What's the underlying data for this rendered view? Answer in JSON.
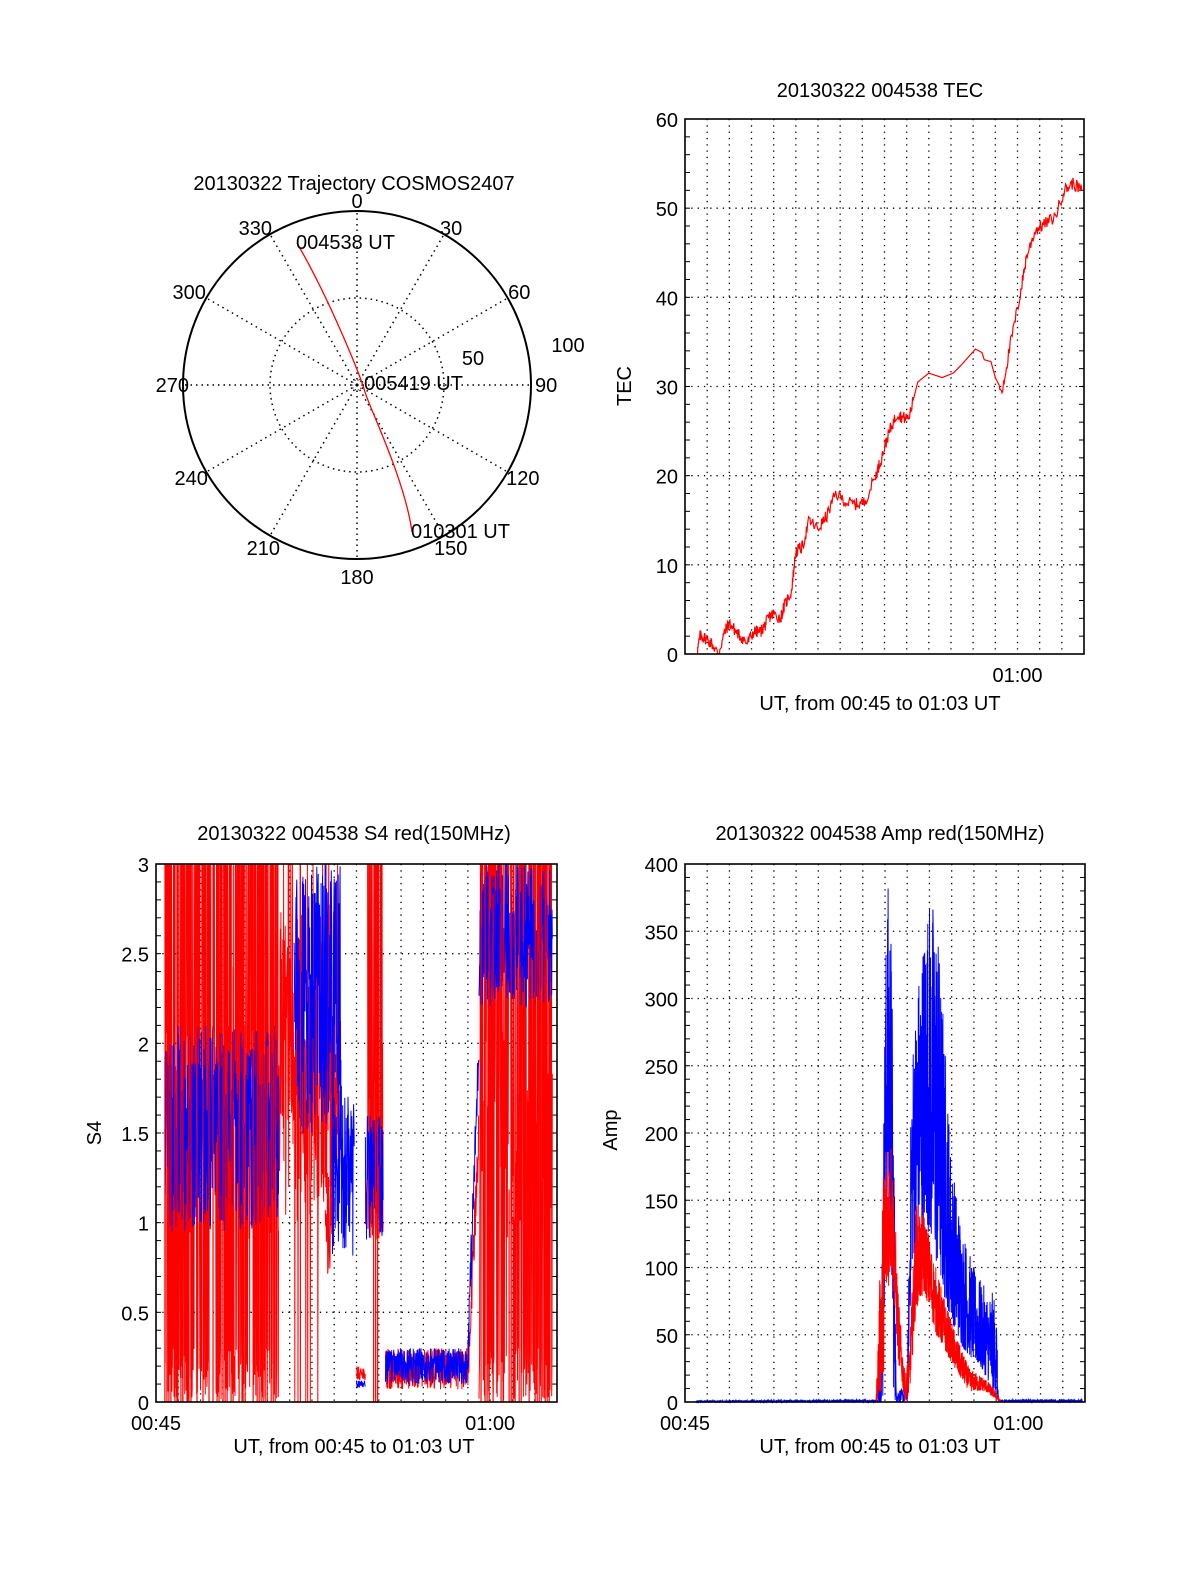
{
  "chart_data": [
    {
      "id": "trajectory",
      "type": "polar",
      "title": "20130322 Trajectory COSMOS2407",
      "azimuth_labels": [
        "0",
        "30",
        "60",
        "90",
        "120",
        "150",
        "180",
        "210",
        "240",
        "270",
        "300",
        "330"
      ],
      "radial_labels": [
        "50",
        "100"
      ],
      "radial_max": 100,
      "grid": "dotted",
      "series": [
        {
          "name": "trajectory",
          "color": "#ff0000",
          "points_az_el": [
            {
              "az": 337.5,
              "el": 5
            },
            {
              "az": 338,
              "el": 20
            },
            {
              "az": 339,
              "el": 40
            },
            {
              "az": 340,
              "el": 60
            },
            {
              "az": 343,
              "el": 80
            },
            {
              "az": 350,
              "el": 92
            },
            {
              "az": 90,
              "el": 97
            },
            {
              "az": 150,
              "el": 92
            },
            {
              "az": 156,
              "el": 80
            },
            {
              "az": 158,
              "el": 60
            },
            {
              "az": 159,
              "el": 40
            },
            {
              "az": 159.5,
              "el": 20
            },
            {
              "az": 159.7,
              "el": 10
            }
          ]
        }
      ],
      "annotations": [
        {
          "text": "004538 UT",
          "at": "start"
        },
        {
          "text": "005419 UT",
          "at": "zenith"
        },
        {
          "text": "010301 UT",
          "at": "end"
        }
      ]
    },
    {
      "id": "tec",
      "type": "line",
      "title": "20130322 004538 TEC",
      "xlabel": "UT, from 00:45 to 01:03 UT",
      "ylabel": "TEC",
      "xlim_minutes_after_0045": [
        0,
        18
      ],
      "ylim": [
        0,
        60
      ],
      "yticks": [
        "0",
        "10",
        "20",
        "30",
        "40",
        "50",
        "60"
      ],
      "ytick_values": [
        0,
        10,
        20,
        30,
        40,
        50,
        60
      ],
      "xticks": [
        {
          "label": "01:00",
          "minute": 15
        }
      ],
      "grid": true,
      "series": [
        {
          "name": "TEC",
          "color": "#ff0000",
          "x_minutes": [
            0.54,
            0.68,
            0.9,
            1.2,
            1.5,
            1.8,
            2.0,
            2.3,
            2.5,
            2.8,
            3.1,
            3.4,
            3.6,
            3.8,
            4.0,
            4.3,
            4.5,
            4.8,
            5.0,
            5.3,
            5.6,
            6.0,
            6.4,
            6.8,
            7.3,
            7.7,
            8.1,
            8.6,
            8.8,
            9.1,
            9.3,
            9.6,
            9.8,
            10.1,
            10.5,
            11.0,
            11.6,
            12.1,
            12.5,
            13.1,
            13.4,
            13.5,
            13.8,
            14.0,
            14.3,
            14.7,
            15.1,
            15.4,
            15.8,
            16.2,
            16.7,
            17.1,
            17.5,
            17.9
          ],
          "values": [
            0,
            2,
            1.8,
            1.2,
            0,
            2.5,
            3.5,
            2.5,
            2.0,
            1.2,
            2.5,
            2.5,
            3.2,
            4.2,
            4.5,
            4.0,
            5.5,
            7.0,
            11.5,
            12.0,
            15.0,
            14.0,
            15.5,
            18.0,
            17.0,
            16.8,
            17.0,
            20.0,
            21.5,
            24.0,
            25.5,
            27.0,
            26.5,
            26.5,
            30.5,
            31.5,
            31.0,
            31.5,
            32.5,
            34.2,
            33.8,
            33.0,
            32.8,
            31.0,
            29.5,
            35.0,
            40.0,
            44.5,
            47.5,
            48.2,
            49.0,
            52.0,
            52.8,
            52.0
          ]
        }
      ]
    },
    {
      "id": "s4",
      "type": "line",
      "title": "20130322 004538 S4 red(150MHz)",
      "xlabel": "UT, from 00:45 to 01:03 UT",
      "ylabel": "S4",
      "xlim_minutes_after_0045": [
        0,
        18
      ],
      "ylim": [
        0,
        3
      ],
      "yticks": [
        "0",
        "0.5",
        "1",
        "1.5",
        "2",
        "2.5",
        "3"
      ],
      "ytick_values": [
        0,
        0.5,
        1,
        1.5,
        2,
        2.5,
        3
      ],
      "xticks": [
        {
          "label": "00:45",
          "minute": 0
        },
        {
          "label": "01:00",
          "minute": 15
        }
      ],
      "grid": true,
      "series": [
        {
          "name": "red (150MHz)",
          "color": "#ff0000",
          "segments": [
            {
              "from": 0.4,
              "to": 5.5,
              "low": 0,
              "high": 3,
              "style": "spikes"
            },
            {
              "from": 5.5,
              "to": 8.3,
              "low": 1.0,
              "high": 2.8,
              "style": "noisy",
              "sparse_spikes": true
            },
            {
              "from": 7.6,
              "to": 8.0,
              "low": 0.7,
              "high": 1.3,
              "style": "noisy"
            },
            {
              "from": 9.0,
              "to": 9.4,
              "low": 0.12,
              "high": 0.2,
              "style": "noisy"
            },
            {
              "from": 9.5,
              "to": 10.2,
              "low": 0.9,
              "high": 3,
              "style": "spikes"
            },
            {
              "from": 10.3,
              "to": 14.0,
              "low": 0.07,
              "high": 0.3,
              "style": "noisy"
            },
            {
              "from": 14.0,
              "to": 14.5,
              "low": 0.2,
              "high": 1.5,
              "style": "rise"
            },
            {
              "from": 14.5,
              "to": 17.8,
              "low": 0,
              "high": 3,
              "style": "spikes"
            }
          ]
        },
        {
          "name": "blue",
          "color": "#0000ff",
          "segments": [
            {
              "from": 0.4,
              "to": 5.5,
              "low": 0.95,
              "high": 2.1,
              "style": "noisy"
            },
            {
              "from": 6.2,
              "to": 8.3,
              "low": 1.5,
              "high": 3,
              "style": "noisy"
            },
            {
              "from": 7.9,
              "to": 8.9,
              "low": 0.8,
              "high": 1.8,
              "style": "noisy"
            },
            {
              "from": 9.0,
              "to": 9.4,
              "low": 0.08,
              "high": 0.12,
              "style": "noisy"
            },
            {
              "from": 9.4,
              "to": 10.2,
              "low": 0.9,
              "high": 1.6,
              "style": "noisy"
            },
            {
              "from": 10.3,
              "to": 14.0,
              "low": 0.1,
              "high": 0.3,
              "style": "noisy"
            },
            {
              "from": 14.0,
              "to": 14.5,
              "low": 0.3,
              "high": 2.0,
              "style": "rise"
            },
            {
              "from": 14.5,
              "to": 17.8,
              "low": 2.2,
              "high": 3,
              "style": "noisy"
            }
          ]
        }
      ]
    },
    {
      "id": "amp",
      "type": "line",
      "title": "20130322 004538 Amp red(150MHz)",
      "xlabel": "UT, from 00:45 to 01:03 UT",
      "ylabel": "Amp",
      "xlim_minutes_after_0045": [
        0,
        18
      ],
      "ylim": [
        0,
        400
      ],
      "yticks": [
        "0",
        "50",
        "100",
        "150",
        "200",
        "250",
        "300",
        "350",
        "400"
      ],
      "ytick_values": [
        0,
        50,
        100,
        150,
        200,
        250,
        300,
        350,
        400
      ],
      "xticks": [
        {
          "label": "00:45",
          "minute": 0
        },
        {
          "label": "01:00",
          "minute": 15
        }
      ],
      "grid": true,
      "series": [
        {
          "name": "blue",
          "color": "#0000ff",
          "envelope": [
            {
              "m": 0.5,
              "low": 0,
              "high": 1
            },
            {
              "m": 8.7,
              "low": 0,
              "high": 2
            },
            {
              "m": 8.9,
              "low": 0,
              "high": 150
            },
            {
              "m": 9.0,
              "low": 100,
              "high": 310
            },
            {
              "m": 9.1,
              "low": 150,
              "high": 392
            },
            {
              "m": 9.25,
              "low": 120,
              "high": 380
            },
            {
              "m": 9.4,
              "low": 0,
              "high": 230
            },
            {
              "m": 9.5,
              "low": 0,
              "high": 10
            },
            {
              "m": 10.0,
              "low": 0,
              "high": 10
            },
            {
              "m": 10.2,
              "low": 100,
              "high": 265
            },
            {
              "m": 10.5,
              "low": 120,
              "high": 320
            },
            {
              "m": 10.9,
              "low": 130,
              "high": 380
            },
            {
              "m": 11.3,
              "low": 100,
              "high": 375
            },
            {
              "m": 11.6,
              "low": 80,
              "high": 300
            },
            {
              "m": 12.0,
              "low": 60,
              "high": 180
            },
            {
              "m": 12.5,
              "low": 40,
              "high": 130
            },
            {
              "m": 13.0,
              "low": 30,
              "high": 100
            },
            {
              "m": 13.5,
              "low": 20,
              "high": 85
            },
            {
              "m": 14.0,
              "low": 5,
              "high": 80
            },
            {
              "m": 14.1,
              "low": 0,
              "high": 2
            },
            {
              "m": 17.9,
              "low": 0,
              "high": 2
            }
          ]
        },
        {
          "name": "red (150MHz)",
          "color": "#ff0000",
          "envelope": [
            {
              "m": 8.6,
              "low": 0,
              "high": 2
            },
            {
              "m": 8.9,
              "low": 10,
              "high": 170
            },
            {
              "m": 9.1,
              "low": 80,
              "high": 210
            },
            {
              "m": 9.3,
              "low": 100,
              "high": 200
            },
            {
              "m": 9.6,
              "low": 30,
              "high": 80
            },
            {
              "m": 9.9,
              "low": 0,
              "high": 20
            },
            {
              "m": 10.1,
              "low": 5,
              "high": 40
            },
            {
              "m": 10.4,
              "low": 70,
              "high": 150
            },
            {
              "m": 10.8,
              "low": 80,
              "high": 140
            },
            {
              "m": 11.3,
              "low": 50,
              "high": 100
            },
            {
              "m": 11.8,
              "low": 35,
              "high": 70
            },
            {
              "m": 12.3,
              "low": 20,
              "high": 45
            },
            {
              "m": 12.8,
              "low": 8,
              "high": 25
            },
            {
              "m": 13.5,
              "low": 8,
              "high": 18
            },
            {
              "m": 14.0,
              "low": 2,
              "high": 8
            },
            {
              "m": 14.2,
              "low": 0,
              "high": 1
            }
          ]
        }
      ]
    }
  ]
}
